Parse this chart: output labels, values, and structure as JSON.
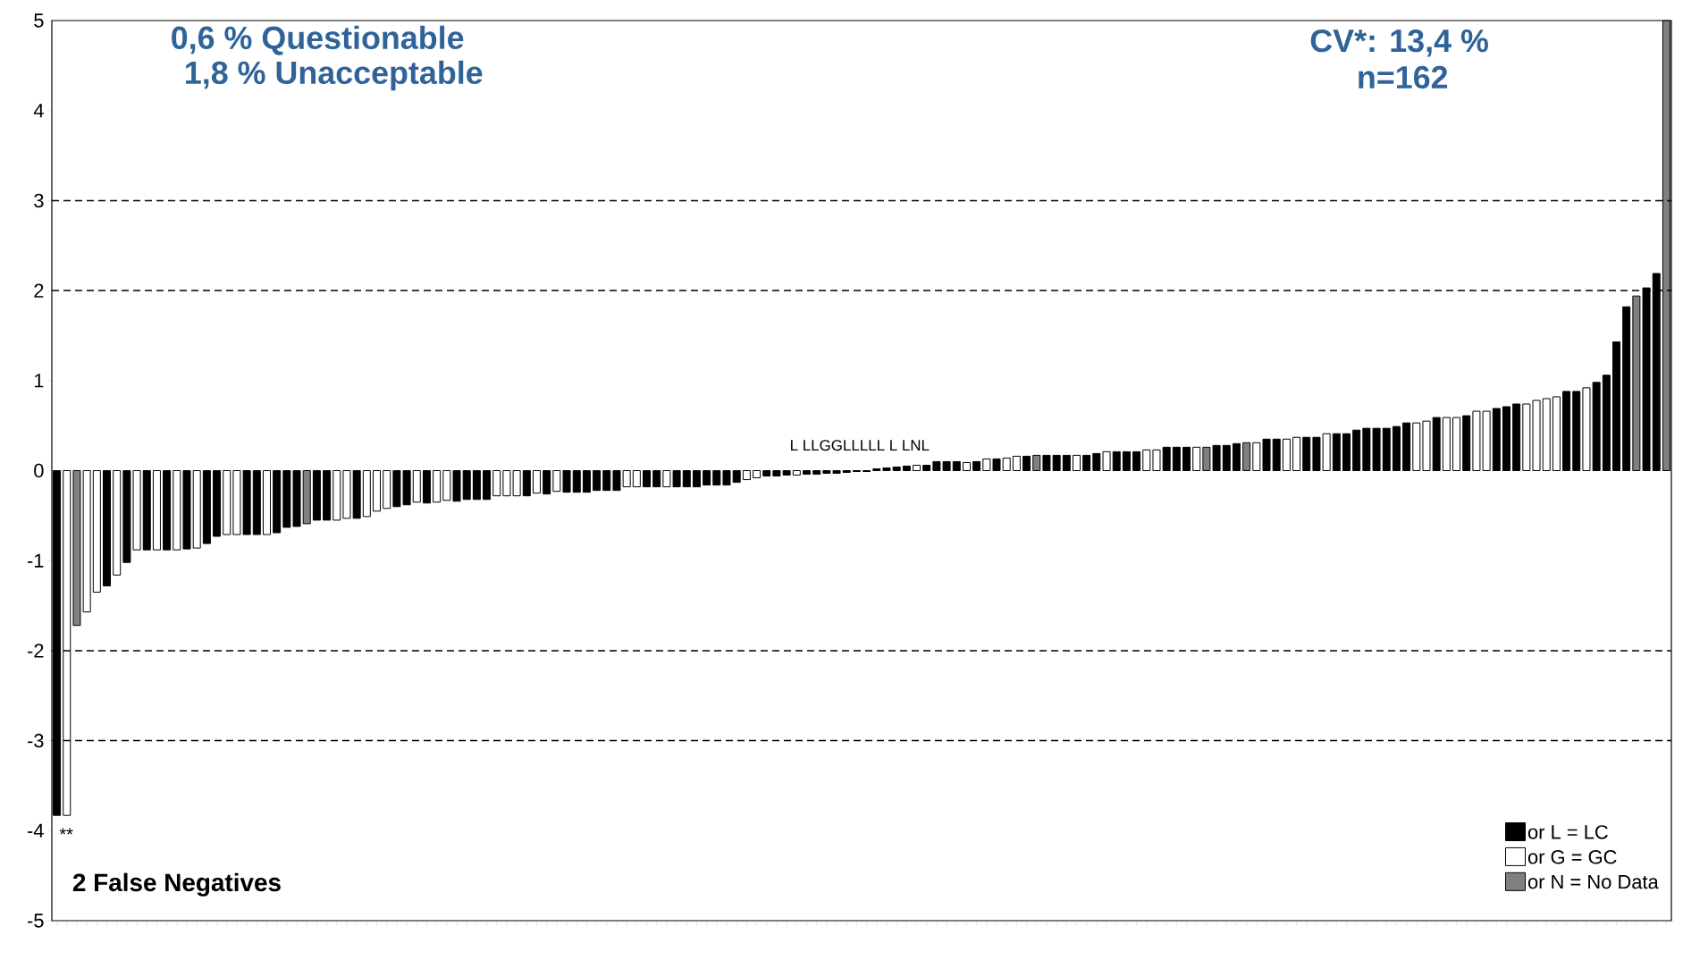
{
  "chart_data": {
    "type": "bar",
    "categories": [
      null,
      null,
      null,
      null,
      null,
      null,
      null,
      null,
      null,
      null,
      null,
      null,
      null,
      null,
      null,
      null,
      null,
      null,
      null,
      null,
      null,
      null,
      null,
      null,
      null,
      null,
      null,
      null,
      null,
      null,
      null,
      null,
      null,
      null,
      null,
      null,
      null,
      null,
      null,
      null,
      null,
      null,
      null,
      null,
      null,
      null,
      null,
      null,
      null,
      null,
      null,
      null,
      null,
      null,
      null,
      null,
      null,
      null,
      null,
      null,
      null,
      null,
      null,
      null,
      null,
      null,
      null,
      null,
      null,
      null,
      null,
      null,
      null,
      null,
      null,
      null,
      null,
      null,
      null,
      null,
      null,
      null,
      null,
      null,
      null,
      null,
      null,
      null,
      null,
      null,
      null,
      null,
      null,
      null,
      null,
      null,
      null,
      null,
      null,
      null,
      null,
      null,
      null,
      null,
      null,
      null,
      null,
      null,
      null,
      null,
      null,
      null,
      null,
      null,
      null,
      null,
      null,
      null,
      null,
      null,
      null,
      null,
      null,
      null,
      null,
      null,
      null,
      null,
      null,
      null,
      null,
      null,
      null,
      null,
      null,
      null,
      null,
      null,
      null,
      null,
      null,
      null,
      null,
      null,
      null,
      null,
      null,
      null,
      null,
      null,
      null,
      null,
      null,
      null,
      null,
      null,
      null,
      null,
      null,
      null,
      null,
      null
    ],
    "series": [
      {
        "name": "or L = LC",
        "color": "#000000",
        "values": [
          -3.83,
          null,
          null,
          null,
          null,
          -1.28,
          null,
          -1.02,
          null,
          -0.88,
          null,
          -0.88,
          null,
          -0.87,
          null,
          -0.81,
          -0.73,
          null,
          null,
          -0.71,
          -0.71,
          null,
          -0.69,
          -0.63,
          -0.62,
          null,
          -0.55,
          -0.55,
          null,
          null,
          -0.53,
          null,
          null,
          null,
          -0.4,
          -0.38,
          null,
          -0.36,
          null,
          null,
          -0.34,
          -0.32,
          -0.32,
          -0.32,
          null,
          null,
          null,
          -0.28,
          null,
          -0.26,
          null,
          -0.24,
          -0.24,
          -0.24,
          -0.22,
          -0.22,
          -0.22,
          null,
          null,
          -0.18,
          -0.18,
          null,
          -0.18,
          -0.18,
          -0.18,
          -0.16,
          -0.16,
          -0.16,
          -0.13,
          null,
          null,
          -0.06,
          -0.06,
          -0.05,
          null,
          -0.04,
          -0.04,
          -0.03,
          -0.03,
          -0.02,
          -0.01,
          -0.01,
          0.02,
          0.03,
          0.04,
          0.05,
          null,
          0.06,
          0.1,
          0.1,
          0.1,
          null,
          0.1,
          null,
          0.13,
          null,
          null,
          0.16,
          null,
          0.17,
          0.17,
          0.17,
          null,
          0.17,
          0.19,
          null,
          0.21,
          0.21,
          0.21,
          null,
          null,
          0.26,
          0.26,
          0.26,
          null,
          null,
          0.28,
          0.28,
          0.3,
          null,
          null,
          0.35,
          0.35,
          null,
          null,
          0.37,
          0.37,
          null,
          0.41,
          0.41,
          0.45,
          0.47,
          0.47,
          0.47,
          0.49,
          0.53,
          null,
          null,
          0.59,
          null,
          null,
          0.61,
          null,
          null,
          0.69,
          0.71,
          0.74,
          null,
          null,
          null,
          null,
          0.88,
          0.88,
          null,
          0.98,
          1.06,
          1.43,
          1.82,
          null,
          2.03,
          2.19,
          null
        ]
      },
      {
        "name": "or G = GC",
        "color": "#ffffff",
        "values": [
          null,
          -3.83,
          null,
          -1.57,
          -1.35,
          null,
          -1.16,
          null,
          -0.88,
          null,
          -0.88,
          null,
          -0.88,
          null,
          -0.86,
          null,
          null,
          -0.71,
          -0.71,
          null,
          null,
          -0.71,
          null,
          null,
          null,
          null,
          null,
          null,
          -0.55,
          -0.53,
          null,
          -0.51,
          -0.45,
          -0.42,
          null,
          null,
          -0.35,
          null,
          -0.35,
          -0.33,
          null,
          null,
          null,
          null,
          -0.28,
          -0.28,
          -0.28,
          null,
          -0.25,
          null,
          -0.23,
          null,
          null,
          null,
          null,
          null,
          null,
          -0.18,
          -0.18,
          null,
          null,
          -0.18,
          null,
          null,
          null,
          null,
          null,
          null,
          null,
          -0.1,
          -0.08,
          null,
          null,
          null,
          -0.05,
          null,
          null,
          null,
          null,
          null,
          null,
          null,
          null,
          null,
          null,
          null,
          0.06,
          null,
          null,
          null,
          null,
          0.09,
          null,
          0.13,
          null,
          0.14,
          0.16,
          null,
          null,
          null,
          null,
          null,
          0.17,
          null,
          null,
          0.21,
          null,
          null,
          null,
          0.23,
          0.23,
          null,
          null,
          null,
          0.26,
          null,
          null,
          null,
          null,
          null,
          0.31,
          null,
          null,
          0.35,
          0.37,
          null,
          null,
          0.41,
          null,
          null,
          null,
          null,
          null,
          null,
          null,
          null,
          0.53,
          0.55,
          null,
          0.59,
          0.59,
          null,
          0.66,
          0.66,
          null,
          null,
          null,
          0.74,
          0.78,
          0.8,
          0.82,
          null,
          null,
          0.92,
          null,
          null,
          null,
          null,
          null,
          null,
          null,
          null
        ]
      },
      {
        "name": "or N = No Data",
        "color": "#808080",
        "values": [
          null,
          null,
          -1.72,
          null,
          null,
          null,
          null,
          null,
          null,
          null,
          null,
          null,
          null,
          null,
          null,
          null,
          null,
          null,
          null,
          null,
          null,
          null,
          null,
          null,
          null,
          -0.59,
          null,
          null,
          null,
          null,
          null,
          null,
          null,
          null,
          null,
          null,
          null,
          null,
          null,
          null,
          null,
          null,
          null,
          null,
          null,
          null,
          null,
          null,
          null,
          null,
          null,
          null,
          null,
          null,
          null,
          null,
          null,
          null,
          null,
          null,
          null,
          null,
          null,
          null,
          null,
          null,
          null,
          null,
          null,
          null,
          null,
          null,
          null,
          null,
          null,
          null,
          null,
          null,
          null,
          null,
          null,
          null,
          null,
          null,
          null,
          null,
          null,
          null,
          null,
          null,
          null,
          null,
          null,
          null,
          null,
          null,
          null,
          null,
          0.17,
          null,
          null,
          null,
          null,
          null,
          null,
          null,
          null,
          null,
          null,
          null,
          null,
          null,
          null,
          null,
          null,
          0.26,
          null,
          null,
          null,
          0.31,
          null,
          null,
          null,
          null,
          null,
          null,
          null,
          null,
          null,
          null,
          null,
          null,
          null,
          null,
          null,
          null,
          null,
          null,
          null,
          null,
          null,
          null,
          null,
          null,
          null,
          null,
          null,
          null,
          null,
          null,
          null,
          null,
          null,
          null,
          null,
          null,
          null,
          null,
          1.94,
          null,
          null,
          5
        ]
      }
    ],
    "ylim": [
      -5,
      5
    ],
    "yticks": [
      -5,
      -4,
      -3,
      -2,
      -1,
      0,
      1,
      2,
      3,
      4,
      5
    ],
    "ref_lines": [
      {
        "axis": "y",
        "value": 3,
        "color": "#000000",
        "line_style": "dashed"
      },
      {
        "axis": "y",
        "value": 2,
        "color": "#000000",
        "line_style": "dashed"
      },
      {
        "axis": "y",
        "value": -2,
        "color": "#000000",
        "line_style": "dashed"
      },
      {
        "axis": "y",
        "value": -3,
        "color": "#000000",
        "line_style": "dashed"
      }
    ],
    "legend": "bottom right",
    "annotations": [
      "0,6 % Questionable",
      "1,8 % Unacceptable",
      "CV*: 13,4 %",
      "n=162",
      "2 False Negatives",
      "**",
      "L LLGGLLLLL L LNL"
    ]
  }
}
